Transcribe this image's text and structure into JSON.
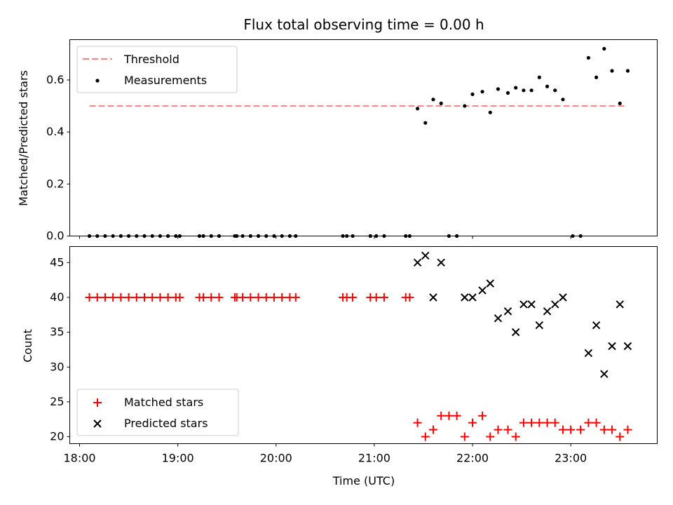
{
  "chart_data": [
    {
      "type": "scatter",
      "title": "Flux total observing time = 0.00 h",
      "xlabel": "",
      "ylabel": "Matched/Predicted stars",
      "xlim": [
        17.9,
        23.88
      ],
      "ylim": [
        0.0,
        0.755
      ],
      "yticks": [
        0.0,
        0.2,
        0.4,
        0.6
      ],
      "ytick_labels": [
        "0.0",
        "0.2",
        "0.4",
        "0.6"
      ],
      "legend_position": "top-left",
      "threshold": {
        "name": "Threshold",
        "value": 0.5,
        "x_range": [
          18.1,
          23.55
        ],
        "color": "#ff7f7f"
      },
      "series": [
        {
          "name": "Measurements",
          "color": "#000000",
          "points": [
            [
              18.1,
              0
            ],
            [
              18.18,
              0
            ],
            [
              18.26,
              0
            ],
            [
              18.34,
              0
            ],
            [
              18.42,
              0
            ],
            [
              18.5,
              0
            ],
            [
              18.58,
              0
            ],
            [
              18.66,
              0
            ],
            [
              18.74,
              0
            ],
            [
              18.82,
              0
            ],
            [
              18.9,
              0
            ],
            [
              18.98,
              0
            ],
            [
              19.02,
              0
            ],
            [
              19.22,
              0
            ],
            [
              19.26,
              0
            ],
            [
              19.34,
              0
            ],
            [
              19.42,
              0
            ],
            [
              19.58,
              0
            ],
            [
              19.6,
              0
            ],
            [
              19.66,
              0
            ],
            [
              19.74,
              0
            ],
            [
              19.82,
              0
            ],
            [
              19.9,
              0
            ],
            [
              19.98,
              0
            ],
            [
              20.06,
              0
            ],
            [
              20.14,
              0
            ],
            [
              20.2,
              0
            ],
            [
              20.68,
              0
            ],
            [
              20.72,
              0
            ],
            [
              20.78,
              0
            ],
            [
              20.96,
              0
            ],
            [
              21.02,
              0
            ],
            [
              21.1,
              0
            ],
            [
              21.32,
              0
            ],
            [
              21.36,
              0
            ],
            [
              21.44,
              0.49
            ],
            [
              21.52,
              0.435
            ],
            [
              21.6,
              0.525
            ],
            [
              21.68,
              0.51
            ],
            [
              21.76,
              0
            ],
            [
              21.84,
              0
            ],
            [
              21.92,
              0.5
            ],
            [
              22.0,
              0.545
            ],
            [
              22.1,
              0.555
            ],
            [
              22.18,
              0.475
            ],
            [
              22.26,
              0.565
            ],
            [
              22.36,
              0.55
            ],
            [
              22.44,
              0.57
            ],
            [
              22.52,
              0.56
            ],
            [
              22.6,
              0.56
            ],
            [
              22.68,
              0.61
            ],
            [
              22.76,
              0.575
            ],
            [
              22.84,
              0.56
            ],
            [
              22.92,
              0.525
            ],
            [
              23.02,
              0
            ],
            [
              23.1,
              0
            ],
            [
              23.18,
              0.685
            ],
            [
              23.26,
              0.61
            ],
            [
              23.34,
              0.72
            ],
            [
              23.42,
              0.635
            ],
            [
              23.5,
              0.51
            ],
            [
              23.58,
              0.635
            ]
          ]
        }
      ]
    },
    {
      "type": "scatter",
      "title": "",
      "xlabel": "Time (UTC)",
      "ylabel": "Count",
      "xlim": [
        17.9,
        23.88
      ],
      "ylim": [
        19.0,
        47.3
      ],
      "yticks": [
        20,
        25,
        30,
        35,
        40,
        45
      ],
      "ytick_labels": [
        "20",
        "25",
        "30",
        "35",
        "40",
        "45"
      ],
      "xticks": [
        18,
        19,
        20,
        21,
        22,
        23
      ],
      "xtick_labels": [
        "18:00",
        "19:00",
        "20:00",
        "21:00",
        "22:00",
        "23:00"
      ],
      "legend_position": "bottom-left",
      "series": [
        {
          "name": "Matched stars",
          "marker": "plus",
          "color": "#ff0000",
          "points": [
            [
              18.1,
              40
            ],
            [
              18.18,
              40
            ],
            [
              18.26,
              40
            ],
            [
              18.34,
              40
            ],
            [
              18.42,
              40
            ],
            [
              18.5,
              40
            ],
            [
              18.58,
              40
            ],
            [
              18.66,
              40
            ],
            [
              18.74,
              40
            ],
            [
              18.82,
              40
            ],
            [
              18.9,
              40
            ],
            [
              18.98,
              40
            ],
            [
              19.02,
              40
            ],
            [
              19.22,
              40
            ],
            [
              19.26,
              40
            ],
            [
              19.34,
              40
            ],
            [
              19.42,
              40
            ],
            [
              19.58,
              40
            ],
            [
              19.6,
              40
            ],
            [
              19.66,
              40
            ],
            [
              19.74,
              40
            ],
            [
              19.82,
              40
            ],
            [
              19.9,
              40
            ],
            [
              19.98,
              40
            ],
            [
              20.06,
              40
            ],
            [
              20.14,
              40
            ],
            [
              20.2,
              40
            ],
            [
              20.68,
              40
            ],
            [
              20.72,
              40
            ],
            [
              20.78,
              40
            ],
            [
              20.96,
              40
            ],
            [
              21.02,
              40
            ],
            [
              21.1,
              40
            ],
            [
              21.32,
              40
            ],
            [
              21.36,
              40
            ],
            [
              21.44,
              22
            ],
            [
              21.52,
              20
            ],
            [
              21.6,
              21
            ],
            [
              21.68,
              23
            ],
            [
              21.76,
              23
            ],
            [
              21.84,
              23
            ],
            [
              21.92,
              20
            ],
            [
              22.0,
              22
            ],
            [
              22.1,
              23
            ],
            [
              22.18,
              20
            ],
            [
              22.26,
              21
            ],
            [
              22.36,
              21
            ],
            [
              22.44,
              20
            ],
            [
              22.52,
              22
            ],
            [
              22.6,
              22
            ],
            [
              22.68,
              22
            ],
            [
              22.76,
              22
            ],
            [
              22.84,
              22
            ],
            [
              22.92,
              21
            ],
            [
              23.0,
              21
            ],
            [
              23.1,
              21
            ],
            [
              23.18,
              22
            ],
            [
              23.26,
              22
            ],
            [
              23.34,
              21
            ],
            [
              23.42,
              21
            ],
            [
              23.5,
              20
            ],
            [
              23.58,
              21
            ]
          ]
        },
        {
          "name": "Predicted stars",
          "marker": "x",
          "color": "#000000",
          "points": [
            [
              21.44,
              45
            ],
            [
              21.52,
              46
            ],
            [
              21.6,
              40
            ],
            [
              21.68,
              45
            ],
            [
              21.92,
              40
            ],
            [
              22.0,
              40
            ],
            [
              22.1,
              41
            ],
            [
              22.18,
              42
            ],
            [
              22.26,
              37
            ],
            [
              22.36,
              38
            ],
            [
              22.44,
              35
            ],
            [
              22.52,
              39
            ],
            [
              22.6,
              39
            ],
            [
              22.68,
              36
            ],
            [
              22.76,
              38
            ],
            [
              22.84,
              39
            ],
            [
              22.92,
              40
            ],
            [
              23.18,
              32
            ],
            [
              23.26,
              36
            ],
            [
              23.34,
              29
            ],
            [
              23.42,
              33
            ],
            [
              23.5,
              39
            ],
            [
              23.58,
              33
            ]
          ]
        }
      ]
    }
  ]
}
